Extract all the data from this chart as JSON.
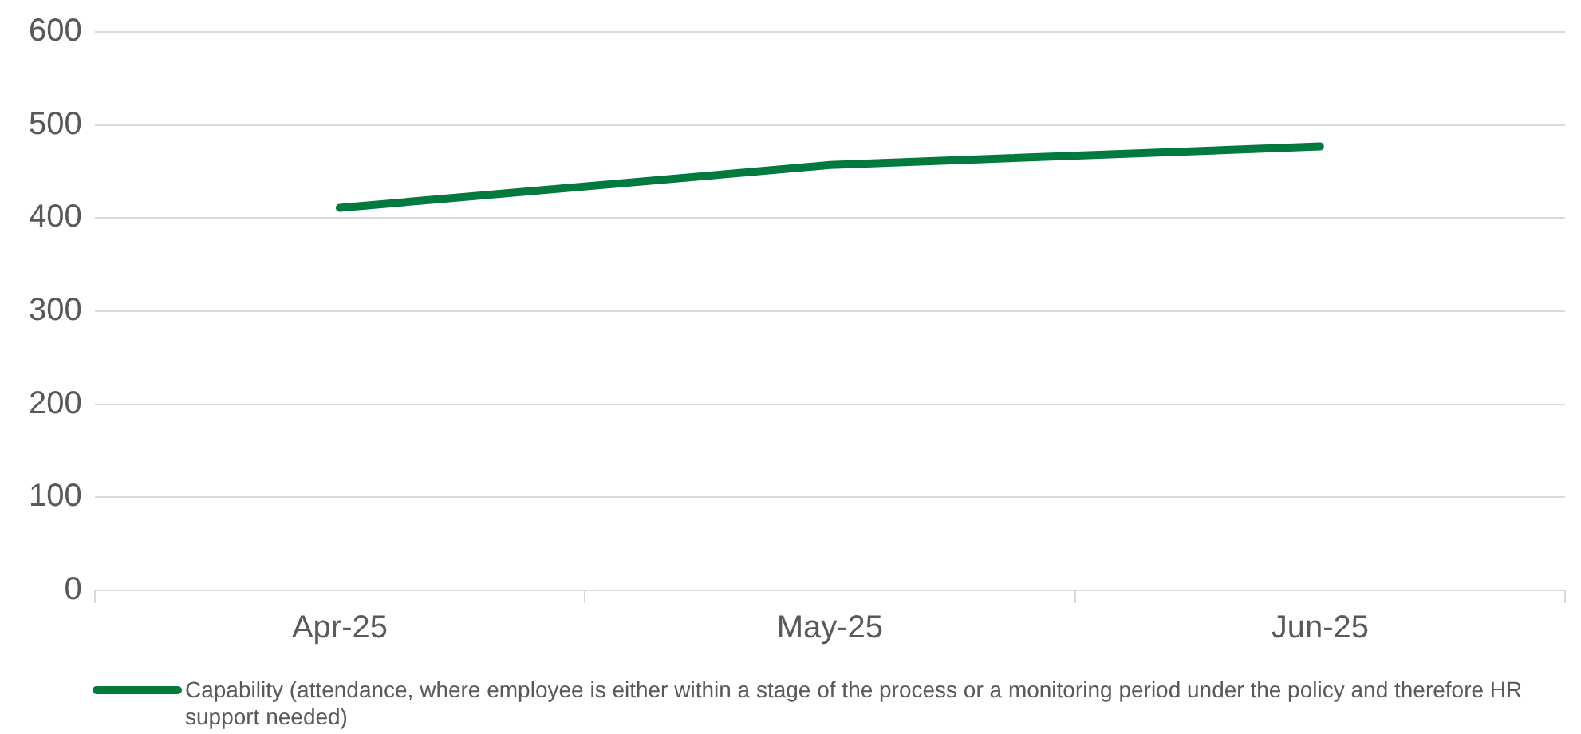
{
  "chart_data": {
    "type": "line",
    "categories": [
      "Apr-25",
      "May-25",
      "Jun-25"
    ],
    "series": [
      {
        "name": "Capability (attendance, where employee is either within a stage of the process or a monitoring period under the policy and therefore HR support needed)",
        "color": "#007a3d",
        "values": [
          411,
          457,
          477
        ]
      }
    ],
    "ylim": [
      0,
      600
    ],
    "yticks": [
      0,
      100,
      200,
      300,
      400,
      500,
      600
    ],
    "grid": "y",
    "legend": "bottom",
    "marker": "none",
    "line_style": "solid"
  }
}
